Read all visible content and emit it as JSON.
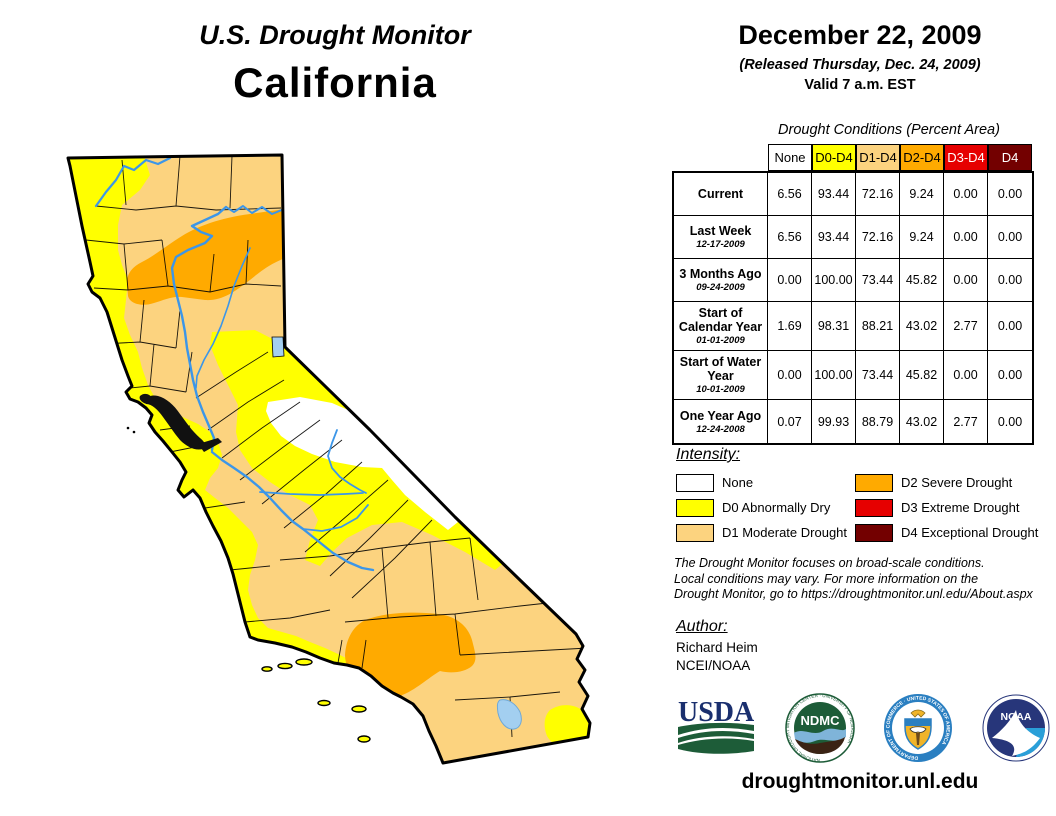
{
  "title": {
    "line1": "U.S. Drought Monitor",
    "line2": "California"
  },
  "date_block": {
    "date": "December 22, 2009",
    "released": "(Released Thursday, Dec. 24, 2009)",
    "valid": "Valid 7 a.m. EST"
  },
  "table": {
    "caption": "Drought Conditions (Percent Area)",
    "columns": [
      "None",
      "D0-D4",
      "D1-D4",
      "D2-D4",
      "D3-D4",
      "D4"
    ],
    "column_colors": [
      "#FFFFFF",
      "#FFFF00",
      "#FCD37F",
      "#FFAA00",
      "#E60000",
      "#730000"
    ],
    "column_text_colors": [
      "#000000",
      "#000000",
      "#000000",
      "#000000",
      "#FFFFFF",
      "#FFFFFF"
    ],
    "rows": [
      {
        "label": "Current",
        "date": "",
        "values": [
          "6.56",
          "93.44",
          "72.16",
          "9.24",
          "0.00",
          "0.00"
        ]
      },
      {
        "label": "Last Week",
        "date": "12-17-2009",
        "values": [
          "6.56",
          "93.44",
          "72.16",
          "9.24",
          "0.00",
          "0.00"
        ]
      },
      {
        "label": "3 Months Ago",
        "date": "09-24-2009",
        "values": [
          "0.00",
          "100.00",
          "73.44",
          "45.82",
          "0.00",
          "0.00"
        ]
      },
      {
        "label": "Start of Calendar Year",
        "date": "01-01-2009",
        "values": [
          "1.69",
          "98.31",
          "88.21",
          "43.02",
          "2.77",
          "0.00"
        ]
      },
      {
        "label": "Start of Water Year",
        "date": "10-01-2009",
        "values": [
          "0.00",
          "100.00",
          "73.44",
          "45.82",
          "0.00",
          "0.00"
        ]
      },
      {
        "label": "One Year Ago",
        "date": "12-24-2008",
        "values": [
          "0.07",
          "99.93",
          "88.79",
          "43.02",
          "2.77",
          "0.00"
        ]
      }
    ]
  },
  "legend": {
    "heading": "Intensity:",
    "items": [
      {
        "label": "None",
        "color": "#FFFFFF"
      },
      {
        "label": "D0 Abnormally Dry",
        "color": "#FFFF00"
      },
      {
        "label": "D1 Moderate Drought",
        "color": "#FCD37F"
      },
      {
        "label": "D2 Severe Drought",
        "color": "#FFAA00"
      },
      {
        "label": "D3 Extreme Drought",
        "color": "#E60000"
      },
      {
        "label": "D4 Exceptional Drought",
        "color": "#730000"
      }
    ]
  },
  "disclaimer_lines": [
    "The Drought Monitor focuses on broad-scale conditions.",
    "Local conditions may vary. For more information on the",
    "Drought Monitor, go to https://droughtmonitor.unl.edu/About.aspx"
  ],
  "author": {
    "heading": "Author:",
    "name": "Richard Heim",
    "org": "NCEI/NOAA"
  },
  "footer": {
    "url": "droughtmonitor.unl.edu"
  },
  "logos": [
    {
      "name": "USDA",
      "text": "USDA"
    },
    {
      "name": "National Drought Mitigation Center",
      "text": "NDMC",
      "ring_text": "NATIONAL DROUGHT MITIGATION CENTER · UNIVERSITY OF NEBRASKA"
    },
    {
      "name": "U.S. Department of Commerce",
      "text": "",
      "ring_text": "DEPARTMENT OF COMMERCE · UNITED STATES OF AMERICA"
    },
    {
      "name": "NOAA",
      "text": "NOAA"
    }
  ],
  "palette": {
    "none": "#FFFFFF",
    "d0": "#FFFF00",
    "d1": "#FCD37F",
    "d2": "#FFAA00",
    "d3": "#E60000",
    "d4": "#730000",
    "river": "#3C96E8",
    "lake": "#A3CFF0",
    "water-body": "#111111",
    "outline": "#000000"
  },
  "map": {
    "state": "California",
    "base_level": "D1 Moderate Drought",
    "features": [
      "D0 abnormally dry strip along the entire north and central coast down to Los Angeles",
      "D0 band through the Sierra foothills wrapping a None (no drought) area on the eastern border",
      "D2 severe drought band across the northern interior reaching the Nevada border",
      "D2 severe drought area over the southern mountains (Kern / Ventura / Los Angeles counties)",
      "D0 patch in the far southeast corner near the Salton Sea",
      "San Francisco Bay, Lake Tahoe, Salton Sea and Channel Islands shown"
    ]
  }
}
